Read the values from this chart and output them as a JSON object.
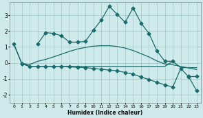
{
  "xlabel": "Humidex (Indice chaleur)",
  "bg_color": "#ceeaea",
  "grid_color": "#aacccc",
  "line_color": "#1a6b6b",
  "xlim": [
    -0.5,
    23.5
  ],
  "ylim": [
    -2.5,
    3.8
  ],
  "yticks": [
    -2,
    -1,
    0,
    1,
    2,
    3
  ],
  "xticks": [
    0,
    1,
    2,
    3,
    4,
    5,
    6,
    7,
    8,
    9,
    10,
    11,
    12,
    13,
    14,
    15,
    16,
    17,
    18,
    19,
    20,
    21,
    22,
    23
  ],
  "series": [
    {
      "x": [
        0,
        1,
        2,
        3,
        4,
        5,
        6,
        7,
        8,
        9,
        10,
        11,
        12,
        13,
        14,
        15,
        16,
        17,
        18,
        19,
        20,
        21,
        22,
        23
      ],
      "y": [
        1.2,
        -0.05,
        null,
        1.2,
        1.9,
        1.85,
        1.7,
        1.3,
        1.3,
        1.35,
        2.05,
        2.7,
        3.55,
        3.05,
        2.55,
        3.45,
        2.5,
        1.85,
        0.75,
        0.1,
        0.1,
        null,
        -0.85,
        -0.85
      ],
      "marker": "D",
      "markersize": 2.5,
      "linewidth": 0.9
    },
    {
      "x": [
        0,
        1,
        2,
        3,
        4,
        5,
        6,
        7,
        8,
        9,
        10,
        11,
        12,
        13,
        14,
        15,
        16,
        17,
        18,
        19,
        20,
        21,
        22,
        23
      ],
      "y": [
        1.15,
        -0.05,
        -0.1,
        0.1,
        0.22,
        0.38,
        0.55,
        0.72,
        0.87,
        0.97,
        1.05,
        1.08,
        1.08,
        1.03,
        0.93,
        0.78,
        0.58,
        0.37,
        0.12,
        -0.07,
        -0.12,
        -0.22,
        -0.32,
        -0.42
      ],
      "marker": null,
      "markersize": 0,
      "linewidth": 0.9
    },
    {
      "x": [
        1,
        2,
        3,
        4,
        5,
        6,
        7,
        8,
        9,
        10,
        11,
        12,
        13,
        14,
        15,
        16,
        17,
        18,
        19,
        20,
        21,
        22,
        23
      ],
      "y": [
        -0.05,
        -0.22,
        -0.22,
        -0.22,
        -0.22,
        -0.22,
        -0.22,
        -0.22,
        -0.22,
        -0.22,
        -0.22,
        -0.22,
        -0.22,
        -0.22,
        -0.22,
        -0.22,
        -0.22,
        -0.22,
        -0.22,
        0.1,
        -0.3,
        -0.3,
        -0.3
      ],
      "marker": null,
      "markersize": 0,
      "linewidth": 0.9
    },
    {
      "x": [
        1,
        2,
        3,
        4,
        5,
        6,
        7,
        8,
        9,
        10,
        11,
        12,
        13,
        14,
        15,
        16,
        17,
        18,
        19,
        20,
        21,
        22,
        23
      ],
      "y": [
        -0.05,
        -0.22,
        -0.22,
        -0.22,
        -0.22,
        -0.22,
        -0.25,
        -0.28,
        -0.3,
        -0.35,
        -0.4,
        -0.45,
        -0.5,
        -0.6,
        -0.72,
        -0.88,
        -1.05,
        -1.22,
        -1.38,
        -1.52,
        -0.35,
        -0.88,
        -1.75
      ],
      "marker": "D",
      "markersize": 2.5,
      "linewidth": 0.9
    }
  ]
}
